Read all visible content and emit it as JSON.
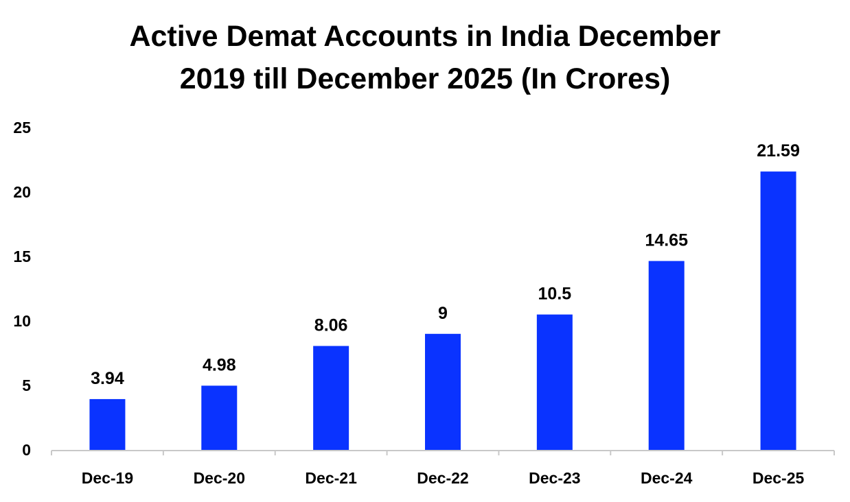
{
  "chart_data": {
    "type": "bar",
    "title_lines": [
      "Active Demat Accounts in India December",
      "2019 till December 2025 (In Crores)"
    ],
    "categories": [
      "Dec-19",
      "Dec-20",
      "Dec-21",
      "Dec-22",
      "Dec-23",
      "Dec-24",
      "Dec-25"
    ],
    "values": [
      3.94,
      4.98,
      8.06,
      9,
      10.5,
      14.65,
      21.59
    ],
    "data_labels": [
      "3.94",
      "4.98",
      "8.06",
      "9",
      "10.5",
      "14.65",
      "21.59"
    ],
    "y_ticks": [
      0,
      5,
      10,
      15,
      20,
      25
    ],
    "ylim": [
      0,
      25
    ],
    "xlabel": "",
    "ylabel": "",
    "grid": false,
    "legend": "none",
    "bar_color": "#0a33ff",
    "axis_color": "#c8c8c8"
  }
}
